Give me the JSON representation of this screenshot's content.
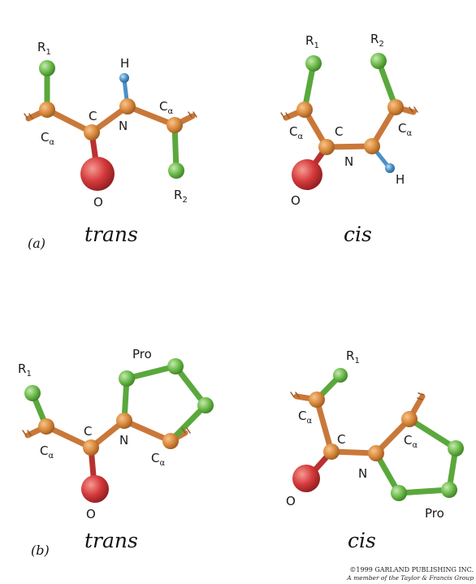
{
  "colors": {
    "carbon": "#d98a3c",
    "oxygen": "#d4393b",
    "nitrogen": "#d98a3c",
    "hydrogen": "#4a90c8",
    "side_chain": "#6cbb4a",
    "bond_orange": "#c9783a",
    "bond_green": "#5aa83c",
    "bond_red": "#b8322f"
  },
  "panel_a": {
    "part_label": "(a)",
    "trans": {
      "caption": "trans",
      "r1": "R",
      "r1_sub": "1",
      "r2": "R",
      "r2_sub": "2",
      "h": "H",
      "n": "N",
      "c": "C",
      "o": "O",
      "ca_left": "C",
      "ca_left_sub": "α",
      "ca_right": "C",
      "ca_right_sub": "α"
    },
    "cis": {
      "caption": "cis",
      "r1": "R",
      "r1_sub": "1",
      "r2": "R",
      "r2_sub": "2",
      "h": "H",
      "n": "N",
      "c": "C",
      "o": "O",
      "ca_left": "C",
      "ca_left_sub": "α",
      "ca_right": "C",
      "ca_right_sub": "α"
    }
  },
  "panel_b": {
    "part_label": "(b)",
    "trans": {
      "caption": "trans",
      "r1": "R",
      "r1_sub": "1",
      "pro": "Pro",
      "n": "N",
      "c": "C",
      "o": "O",
      "ca_left": "C",
      "ca_left_sub": "α",
      "ca_right": "C",
      "ca_right_sub": "α"
    },
    "cis": {
      "caption": "cis",
      "r1": "R",
      "r1_sub": "1",
      "pro": "Pro",
      "n": "N",
      "c": "C",
      "o": "O",
      "ca_left": "C",
      "ca_left_sub": "α",
      "ca_right": "C",
      "ca_right_sub": "α"
    }
  },
  "copyright": {
    "line1": "©1999 GARLAND PUBLISHING INC.",
    "line2": "A member of the Taylor & Francis Group"
  }
}
